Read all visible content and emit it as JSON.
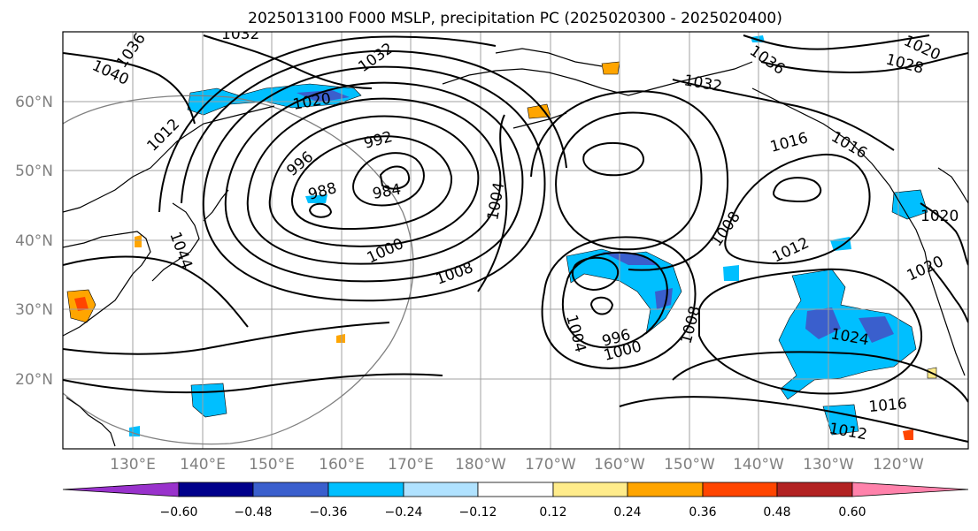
{
  "title": "2025013100 F000 MSLP, precipitation PC (2025020300 - 2025020400)",
  "lat_labels": [
    "60°N",
    "50°N",
    "40°N",
    "30°N",
    "20°N"
  ],
  "lon_labels": [
    "130°E",
    "140°E",
    "150°E",
    "160°E",
    "170°E",
    "180°W",
    "170°W",
    "160°W",
    "150°W",
    "140°W",
    "130°W",
    "120°W"
  ],
  "contour_labels": [
    "1032",
    "1036",
    "1040",
    "1032",
    "1020",
    "1036",
    "1032",
    "1016",
    "1016",
    "1020",
    "1028",
    "1020",
    "992",
    "996",
    "984",
    "988",
    "1004",
    "1000",
    "1008",
    "1012",
    "1008",
    "1012",
    "1044",
    "996",
    "1000",
    "1004",
    "1008",
    "1024",
    "1016",
    "1012",
    "1020"
  ],
  "colorbar": {
    "tick_labels": [
      "−0.60",
      "−0.48",
      "−0.36",
      "−0.24",
      "−0.12",
      "0.12",
      "0.24",
      "0.36",
      "0.48",
      "0.60"
    ],
    "colors": [
      "#9932cc",
      "#00008b",
      "#3a5fcd",
      "#00bfff",
      "#b0e2ff",
      "#ffffff",
      "#ffec8b",
      "#ffa500",
      "#ff4500",
      "#b22222",
      "#ff82ab"
    ]
  },
  "colors": {
    "contour": "#000000",
    "grid": "#a0a0a0",
    "axis_label": "#808080"
  }
}
